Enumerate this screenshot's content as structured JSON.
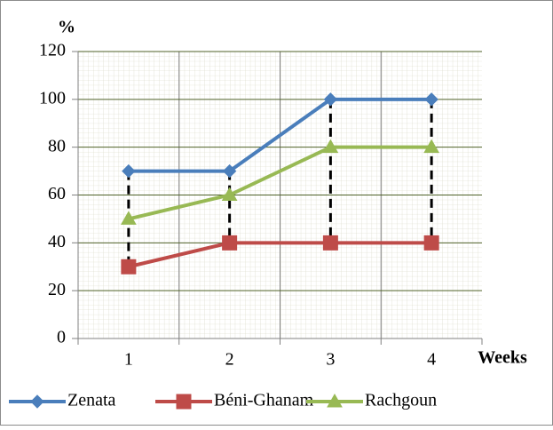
{
  "chart_data": {
    "type": "line",
    "y_label": "%",
    "x_label": "Weeks",
    "categories": [
      "1",
      "2",
      "3",
      "4"
    ],
    "series": [
      {
        "name": "Zenata",
        "color": "#4a7ebb",
        "marker": "diamond",
        "values": [
          70,
          70,
          100,
          100
        ]
      },
      {
        "name": "Béni-Ghanam",
        "color": "#be4b48",
        "marker": "square",
        "values": [
          30,
          40,
          40,
          40
        ]
      },
      {
        "name": "Rachgoun",
        "color": "#98b954",
        "marker": "triangle",
        "values": [
          50,
          60,
          80,
          80
        ]
      }
    ],
    "ylim": [
      0,
      120
    ],
    "yticks": [
      0,
      20,
      40,
      60,
      80,
      100,
      120
    ],
    "grid": true,
    "minor_grid": true,
    "high_low_lines": true,
    "legend": "bottom"
  }
}
